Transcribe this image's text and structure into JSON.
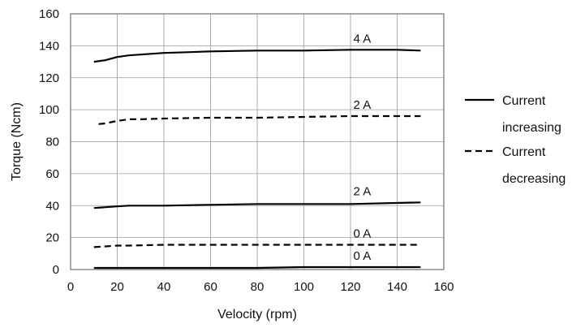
{
  "chart_data": {
    "type": "line",
    "xlabel": "Velocity (rpm)",
    "ylabel": "Torque (Ncm)",
    "xlim": [
      0,
      160
    ],
    "ylim": [
      0,
      160
    ],
    "xticks": [
      0,
      20,
      40,
      60,
      80,
      100,
      120,
      140,
      160
    ],
    "yticks": [
      0,
      20,
      40,
      60,
      80,
      100,
      120,
      140,
      160
    ],
    "grid": true,
    "legend": {
      "placement": "right",
      "entries": [
        {
          "style": "solid",
          "line1": "Current",
          "line2": "increasing"
        },
        {
          "style": "dashed",
          "line1": "Current",
          "line2": "decreasing"
        }
      ]
    },
    "series": [
      {
        "label": "4 A",
        "style": "solid",
        "x": [
          10,
          15,
          20,
          25,
          30,
          40,
          50,
          60,
          80,
          100,
          120,
          140,
          150
        ],
        "y": [
          130,
          131,
          133,
          134,
          134.5,
          135.5,
          136,
          136.5,
          137,
          137,
          137.5,
          137.5,
          137
        ]
      },
      {
        "label": "2 A",
        "style": "dashed",
        "x": [
          12,
          15,
          20,
          25,
          30,
          40,
          60,
          80,
          100,
          120,
          150
        ],
        "y": [
          91,
          91.5,
          93,
          94,
          94,
          94.5,
          95,
          95,
          95.5,
          96,
          96
        ]
      },
      {
        "label": "2 A",
        "style": "solid",
        "x": [
          10,
          15,
          20,
          25,
          40,
          60,
          80,
          100,
          120,
          150
        ],
        "y": [
          38.5,
          39,
          39.5,
          40,
          40,
          40.5,
          41,
          41,
          41,
          42
        ]
      },
      {
        "label": "0 A",
        "style": "dashed",
        "x": [
          10,
          15,
          20,
          25,
          40,
          60,
          80,
          100,
          120,
          150
        ],
        "y": [
          14,
          14.5,
          15,
          15,
          15.5,
          15.5,
          15.5,
          15.5,
          15.5,
          15.5
        ]
      },
      {
        "label": "0 A",
        "style": "solid",
        "x": [
          10,
          20,
          40,
          60,
          80,
          100,
          120,
          150
        ],
        "y": [
          1,
          1,
          1,
          1,
          1,
          1.5,
          1.5,
          1.5
        ]
      }
    ]
  }
}
